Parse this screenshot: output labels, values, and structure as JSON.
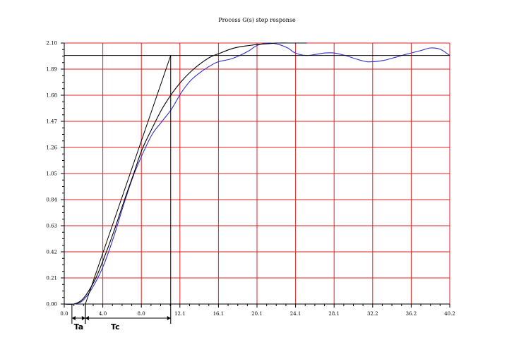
{
  "chart_data": {
    "type": "line",
    "title": "Process G(s) step response",
    "xlabel": "",
    "ylabel": "",
    "xlim": [
      0,
      40.2
    ],
    "ylim": [
      0,
      2.1
    ],
    "x_ticks": [
      "0.0",
      "4.0",
      "8.0",
      "12.1",
      "16.1",
      "20.1",
      "24.1",
      "28.1",
      "32.2",
      "36.2",
      "40.2"
    ],
    "x_tick_values": [
      0,
      4.02,
      8.04,
      12.06,
      16.08,
      20.1,
      24.12,
      28.14,
      32.16,
      36.18,
      40.2
    ],
    "y_ticks": [
      "0.00",
      "0.21",
      "0.42",
      "0.63",
      "0.84",
      "1.05",
      "1.26",
      "1.47",
      "1.68",
      "1.89",
      "2.10"
    ],
    "y_tick_values": [
      0,
      0.21,
      0.42,
      0.63,
      0.84,
      1.05,
      1.26,
      1.47,
      1.68,
      1.89,
      2.1
    ],
    "grid": true,
    "grid_color": "#e02020",
    "series": [
      {
        "color": "#3030d0",
        "x": [
          0,
          1,
          1.8,
          2.5,
          3.3,
          4.2,
          5.2,
          6.2,
          7.2,
          8.3,
          9.2,
          10.2,
          11.2,
          12.2,
          13.2,
          14.3,
          15.3,
          16.1,
          17.3,
          18.3,
          19.3,
          20.1,
          21.2,
          22.3,
          23.3,
          24.1,
          25.2,
          26.3,
          27.2,
          28.1,
          29.3,
          30.5,
          31.5,
          32.3,
          33.3,
          34.3,
          35.2,
          36.2,
          37.2,
          38.2,
          39.2,
          40.2
        ],
        "y": [
          0,
          0,
          0.02,
          0.08,
          0.18,
          0.33,
          0.55,
          0.8,
          1.03,
          1.23,
          1.37,
          1.47,
          1.57,
          1.7,
          1.8,
          1.87,
          1.92,
          1.95,
          1.97,
          2.0,
          2.04,
          2.08,
          2.1,
          2.09,
          2.06,
          2.02,
          2.0,
          2.01,
          2.02,
          2.02,
          2.0,
          1.97,
          1.95,
          1.95,
          1.96,
          1.98,
          2.0,
          2.02,
          2.04,
          2.06,
          2.05,
          2.0
        ]
      },
      {
        "color": "#000000",
        "x": [
          0,
          1,
          1.8,
          2.5,
          3.3,
          4.2,
          5.2,
          6.2,
          7.2,
          8.1,
          9.2,
          10.2,
          11.2,
          12.2,
          13.2,
          14.3,
          15.3,
          16.3,
          17.3,
          18.3,
          19.3,
          20.3,
          21.3,
          22.3,
          23.3,
          24.3,
          25.3
        ],
        "y": [
          0,
          0,
          0.03,
          0.1,
          0.21,
          0.38,
          0.59,
          0.82,
          1.04,
          1.24,
          1.42,
          1.57,
          1.69,
          1.79,
          1.87,
          1.94,
          1.99,
          2.02,
          2.05,
          2.07,
          2.08,
          2.09,
          2.095,
          2.1,
          2.1,
          2.1,
          2.1
        ]
      }
    ],
    "annotations": {
      "tangent_line": {
        "x": [
          2.2,
          11.1
        ],
        "y": [
          0,
          2.0
        ]
      },
      "steady_state_line": {
        "x": [
          0,
          40.2
        ],
        "y": [
          2.0,
          2.0
        ]
      },
      "vertical_marker": {
        "x": 11.1,
        "y": [
          0,
          2.0
        ]
      },
      "Ta": {
        "label": "Ta",
        "x": [
          0.8,
          2.2
        ]
      },
      "Tc": {
        "label": "Tc",
        "x": [
          2.2,
          11.1
        ]
      }
    }
  }
}
